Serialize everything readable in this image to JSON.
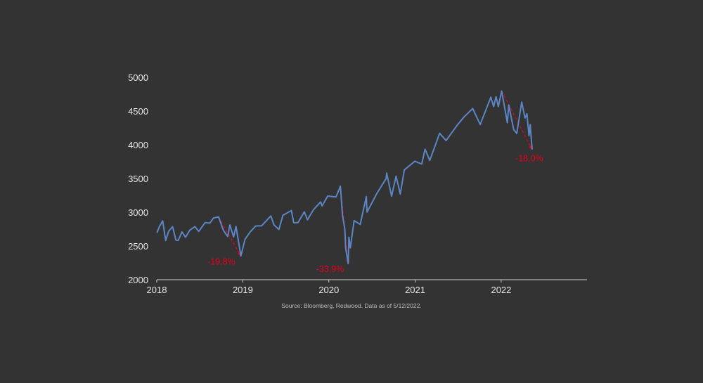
{
  "chart_data": {
    "type": "line",
    "title": "",
    "xlabel": "",
    "ylabel": "",
    "xlim": [
      "2018-01-01",
      "2022-05-12"
    ],
    "ylim": [
      2000,
      5000
    ],
    "x_ticks": [
      "2018",
      "2019",
      "2020",
      "2021",
      "2022"
    ],
    "y_ticks": [
      2000,
      2500,
      3000,
      3500,
      4000,
      4500,
      5000
    ],
    "grid": false,
    "legend": "none",
    "line_color": "#5b86c5",
    "annotation_color": "#e8001c",
    "series": [
      {
        "values": [
          [
            "2018-01-02",
            2695
          ],
          [
            "2018-01-12",
            2786
          ],
          [
            "2018-01-26",
            2872
          ],
          [
            "2018-02-08",
            2581
          ],
          [
            "2018-02-20",
            2716
          ],
          [
            "2018-03-09",
            2786
          ],
          [
            "2018-03-23",
            2588
          ],
          [
            "2018-04-02",
            2582
          ],
          [
            "2018-04-18",
            2708
          ],
          [
            "2018-05-03",
            2629
          ],
          [
            "2018-05-21",
            2733
          ],
          [
            "2018-06-12",
            2786
          ],
          [
            "2018-06-28",
            2716
          ],
          [
            "2018-07-25",
            2846
          ],
          [
            "2018-08-14",
            2839
          ],
          [
            "2018-08-29",
            2914
          ],
          [
            "2018-09-20",
            2931
          ],
          [
            "2018-10-11",
            2728
          ],
          [
            "2018-10-29",
            2641
          ],
          [
            "2018-11-07",
            2813
          ],
          [
            "2018-11-23",
            2633
          ],
          [
            "2018-12-03",
            2790
          ],
          [
            "2018-12-24",
            2351
          ],
          [
            "2019-01-10",
            2596
          ],
          [
            "2019-02-01",
            2707
          ],
          [
            "2019-02-25",
            2796
          ],
          [
            "2019-03-22",
            2800
          ],
          [
            "2019-04-30",
            2946
          ],
          [
            "2019-05-13",
            2812
          ],
          [
            "2019-06-03",
            2744
          ],
          [
            "2019-06-20",
            2954
          ],
          [
            "2019-07-26",
            3025
          ],
          [
            "2019-08-05",
            2844
          ],
          [
            "2019-08-23",
            2847
          ],
          [
            "2019-09-19",
            3006
          ],
          [
            "2019-10-02",
            2887
          ],
          [
            "2019-10-28",
            3039
          ],
          [
            "2019-11-27",
            3153
          ],
          [
            "2019-12-03",
            3093
          ],
          [
            "2019-12-27",
            3240
          ],
          [
            "2020-01-31",
            3226
          ],
          [
            "2020-02-19",
            3386
          ],
          [
            "2020-02-28",
            2954
          ],
          [
            "2020-03-09",
            2746
          ],
          [
            "2020-03-12",
            2480
          ],
          [
            "2020-03-16",
            2386
          ],
          [
            "2020-03-23",
            2237
          ],
          [
            "2020-03-26",
            2630
          ],
          [
            "2020-04-01",
            2470
          ],
          [
            "2020-04-17",
            2875
          ],
          [
            "2020-05-13",
            2820
          ],
          [
            "2020-06-08",
            3232
          ],
          [
            "2020-06-11",
            3002
          ],
          [
            "2020-07-22",
            3276
          ],
          [
            "2020-08-31",
            3500
          ],
          [
            "2020-09-02",
            3580
          ],
          [
            "2020-09-23",
            3237
          ],
          [
            "2020-10-12",
            3534
          ],
          [
            "2020-10-30",
            3270
          ],
          [
            "2020-11-16",
            3627
          ],
          [
            "2020-12-31",
            3756
          ],
          [
            "2021-01-29",
            3714
          ],
          [
            "2021-02-12",
            3934
          ],
          [
            "2021-03-04",
            3768
          ],
          [
            "2021-04-15",
            4170
          ],
          [
            "2021-05-12",
            4063
          ],
          [
            "2021-06-30",
            4298
          ],
          [
            "2021-07-29",
            4419
          ],
          [
            "2021-08-16",
            4479
          ],
          [
            "2021-09-02",
            4537
          ],
          [
            "2021-10-04",
            4300
          ],
          [
            "2021-11-18",
            4705
          ],
          [
            "2021-11-30",
            4567
          ],
          [
            "2021-12-10",
            4712
          ],
          [
            "2021-12-20",
            4568
          ],
          [
            "2022-01-03",
            4797
          ],
          [
            "2022-01-27",
            4326
          ],
          [
            "2022-02-02",
            4589
          ],
          [
            "2022-02-23",
            4225
          ],
          [
            "2022-03-08",
            4170
          ],
          [
            "2022-03-29",
            4632
          ],
          [
            "2022-04-12",
            4397
          ],
          [
            "2022-04-20",
            4459
          ],
          [
            "2022-04-29",
            4132
          ],
          [
            "2022-05-04",
            4300
          ],
          [
            "2022-05-12",
            3930
          ]
        ]
      }
    ],
    "annotations": [
      {
        "label": "-19.8%",
        "from": [
          "2018-09-20",
          2931
        ],
        "to": [
          "2018-12-24",
          2351
        ]
      },
      {
        "label": "-33.9%",
        "from": [
          "2020-02-19",
          3386
        ],
        "to": [
          "2020-03-23",
          2237
        ]
      },
      {
        "label": "-18.0%",
        "from": [
          "2022-01-03",
          4797
        ],
        "to": [
          "2022-05-12",
          3930
        ]
      }
    ]
  },
  "source_note": "Source: Bloomberg, Redwood. Data as of 5/12/2022."
}
